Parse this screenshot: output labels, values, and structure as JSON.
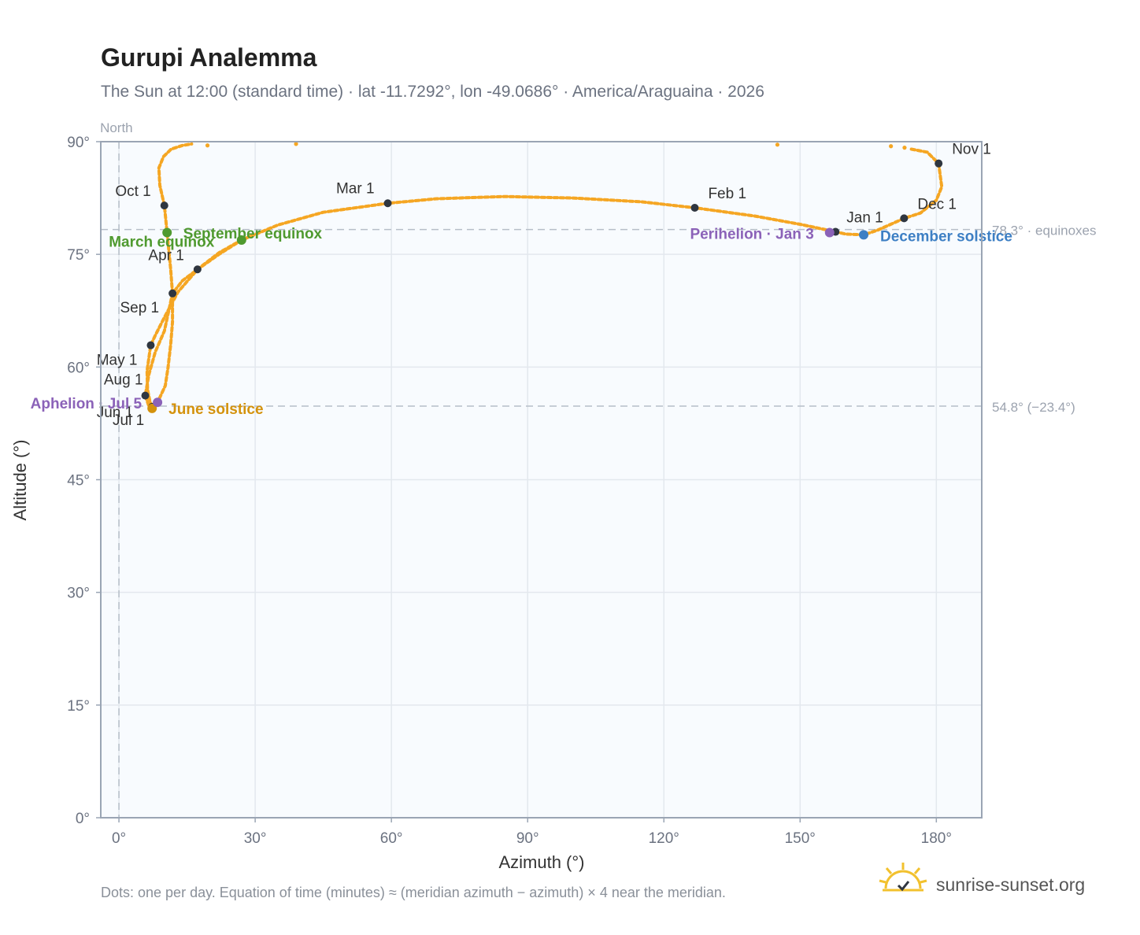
{
  "title": "Gurupi Analemma",
  "subtitle": "The Sun at 12:00 (standard time) · lat -11.7292°, lon -49.0686° · America/Araguaina · 2026",
  "footnote": "Dots: one per day. Equation of time (minutes) ≈ (meridian azimuth − azimuth) × 4 near the meridian.",
  "brand": "sunrise-sunset.org",
  "colors": {
    "path": "#f5a623",
    "month_marker": "#2f3640",
    "equinox": "#4f9a2f",
    "june_solstice": "#d4920c",
    "december_solstice": "#3d7fc4",
    "apsis": "#8b62b8",
    "plot_bg": "#f8fbfe",
    "grid": "#e3e8ee",
    "frame": "#9aa5b4"
  },
  "chart_data": {
    "type": "scatter",
    "xlabel": "Azimuth (°)",
    "ylabel": "Altitude (°)",
    "xlim": [
      -4,
      190
    ],
    "ylim": [
      0,
      90
    ],
    "x_ticks": [
      "0°",
      "30°",
      "60°",
      "90°",
      "120°",
      "150°",
      "180°"
    ],
    "y_ticks": [
      "0°",
      "15°",
      "30°",
      "45°",
      "60°",
      "75°",
      "90°"
    ],
    "x_tick_values": [
      0,
      30,
      60,
      90,
      120,
      150,
      180
    ],
    "y_tick_values": [
      0,
      15,
      30,
      45,
      60,
      75,
      90
    ],
    "grid": true,
    "north_label": "North",
    "reference_lines": [
      {
        "y": 78.3,
        "label": "78.3° · equinoxes"
      },
      {
        "y": 54.8,
        "label": "54.8° (−23.4°)"
      }
    ],
    "month_markers": [
      {
        "label": "Jan 1",
        "x": 157.8,
        "y": 78.0
      },
      {
        "label": "Feb 1",
        "x": 126.8,
        "y": 81.2
      },
      {
        "label": "Mar 1",
        "x": 59.2,
        "y": 81.8
      },
      {
        "label": "Apr 1",
        "x": 17.3,
        "y": 73.0
      },
      {
        "label": "May 1",
        "x": 7.0,
        "y": 62.9
      },
      {
        "label": "Jun 1",
        "x": 7.3,
        "y": 54.7
      },
      {
        "label": "Jul 1",
        "x": 7.3,
        "y": 54.5
      },
      {
        "label": "Aug 1",
        "x": 5.8,
        "y": 56.2
      },
      {
        "label": "Sep 1",
        "x": 11.8,
        "y": 69.8
      },
      {
        "label": "Oct 1",
        "x": 10.0,
        "y": 81.5
      },
      {
        "label": "Nov 1",
        "x": 180.5,
        "y": 87.1
      },
      {
        "label": "Dec 1",
        "x": 172.9,
        "y": 79.8
      }
    ],
    "events": [
      {
        "label": "March equinox",
        "x": 10.6,
        "y": 77.9,
        "kind": "equinox"
      },
      {
        "label": "September equinox",
        "x": 27.0,
        "y": 76.9,
        "kind": "equinox"
      },
      {
        "label": "June solstice",
        "x": 7.3,
        "y": 54.5,
        "kind": "june_solstice"
      },
      {
        "label": "December solstice",
        "x": 164.0,
        "y": 77.6,
        "kind": "december_solstice"
      },
      {
        "label": "Perihelion · Jan 3",
        "x": 156.5,
        "y": 77.9,
        "kind": "apsis"
      },
      {
        "label": "Aphelion · Jul 5",
        "x": 8.5,
        "y": 55.3,
        "kind": "apsis"
      }
    ],
    "path_segments": [
      {
        "name": "Dec-Feb",
        "points": [
          [
            172.9,
            79.8
          ],
          [
            167,
            78.2
          ],
          [
            164.0,
            77.6
          ],
          [
            160,
            77.7
          ],
          [
            157.8,
            78.0
          ],
          [
            150,
            79.0
          ],
          [
            140,
            80.1
          ],
          [
            126.8,
            81.2
          ],
          [
            115,
            82.0
          ],
          [
            100,
            82.5
          ],
          [
            85,
            82.7
          ],
          [
            70,
            82.4
          ],
          [
            59.2,
            81.8
          ]
        ]
      },
      {
        "name": "Mar-Jul",
        "points": [
          [
            59.2,
            81.8
          ],
          [
            45,
            80.6
          ],
          [
            35,
            78.9
          ],
          [
            27,
            76.9
          ],
          [
            22,
            75.0
          ],
          [
            17.3,
            73.0
          ],
          [
            13,
            70.0
          ],
          [
            10,
            66.6
          ],
          [
            8,
            64.2
          ],
          [
            7.0,
            62.9
          ],
          [
            6.2,
            59.5
          ],
          [
            6.3,
            57.0
          ],
          [
            6.8,
            55.5
          ],
          [
            7.3,
            54.7
          ],
          [
            7.6,
            54.4
          ],
          [
            8.5,
            55.3
          ],
          [
            10.2,
            57.5
          ],
          [
            10.8,
            59.9
          ],
          [
            11.4,
            63.0
          ],
          [
            11.8,
            66.0
          ],
          [
            11.8,
            69.8
          ],
          [
            11.4,
            73.0
          ],
          [
            10.6,
            77.9
          ],
          [
            10.0,
            81.5
          ],
          [
            9.0,
            84.2
          ],
          [
            8.8,
            86.5
          ],
          [
            9.8,
            88.0
          ],
          [
            11.5,
            89.0
          ],
          [
            14,
            89.5
          ],
          [
            16,
            89.7
          ]
        ]
      },
      {
        "name": "Jul-Sep",
        "points": [
          [
            7.6,
            54.4
          ],
          [
            6.6,
            54.8
          ],
          [
            5.8,
            56.2
          ],
          [
            6.6,
            59.0
          ],
          [
            8,
            62.0
          ],
          [
            10,
            64.8
          ],
          [
            11.8,
            69.8
          ],
          [
            14,
            71.5
          ],
          [
            17.3,
            73.0
          ],
          [
            22,
            75.2
          ],
          [
            27,
            76.9
          ]
        ]
      },
      {
        "name": "Oct-Dec",
        "points": [
          [
            180.5,
            87.1
          ],
          [
            181.2,
            84.0
          ],
          [
            180,
            82.2
          ],
          [
            176.5,
            80.5
          ],
          [
            172.9,
            79.8
          ]
        ]
      },
      {
        "name": "Nov top",
        "points": [
          [
            174.5,
            89.0
          ],
          [
            178,
            88.6
          ],
          [
            180.5,
            87.1
          ]
        ]
      }
    ],
    "sparse_points": [
      [
        19.5,
        89.5
      ],
      [
        39.0,
        89.7
      ],
      [
        145.0,
        89.6
      ],
      [
        170.0,
        89.4
      ],
      [
        173.0,
        89.2
      ]
    ]
  }
}
